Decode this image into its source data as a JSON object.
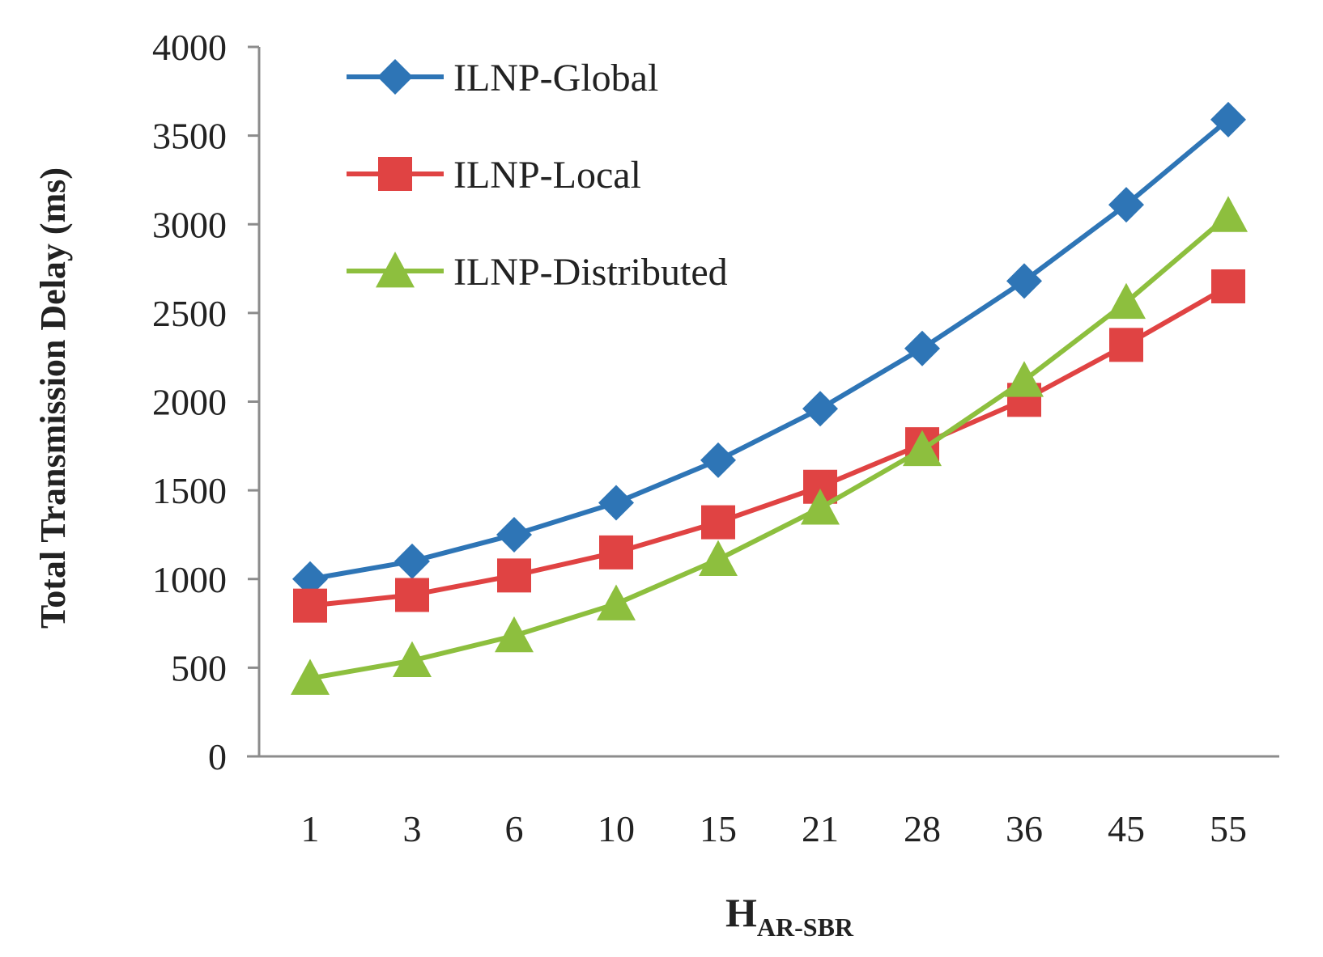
{
  "chart_data": {
    "type": "line",
    "title": "",
    "xlabel": "H",
    "xlabel_sub": "AR-SBR",
    "ylabel": "Total Transmission Delay (ms)",
    "categories": [
      "1",
      "3",
      "6",
      "10",
      "15",
      "21",
      "28",
      "36",
      "45",
      "55"
    ],
    "ylim": [
      0,
      4000
    ],
    "yticks": [
      "0",
      "500",
      "1000",
      "1500",
      "2000",
      "2500",
      "3000",
      "3500",
      "4000"
    ],
    "grid": false,
    "legend_position": "top-left",
    "series": [
      {
        "name": "ILNP-Global",
        "color": "#2E75B6",
        "marker": "diamond",
        "values": [
          1000,
          1100,
          1250,
          1430,
          1670,
          1960,
          2300,
          2680,
          3110,
          3590
        ]
      },
      {
        "name": "ILNP-Local",
        "color": "#E04343",
        "marker": "square",
        "values": [
          850,
          910,
          1020,
          1150,
          1320,
          1520,
          1760,
          2010,
          2320,
          2650
        ]
      },
      {
        "name": "ILNP-Distributed",
        "color": "#8DBF3E",
        "marker": "triangle",
        "values": [
          440,
          540,
          680,
          860,
          1110,
          1400,
          1730,
          2120,
          2560,
          3050
        ]
      }
    ]
  }
}
